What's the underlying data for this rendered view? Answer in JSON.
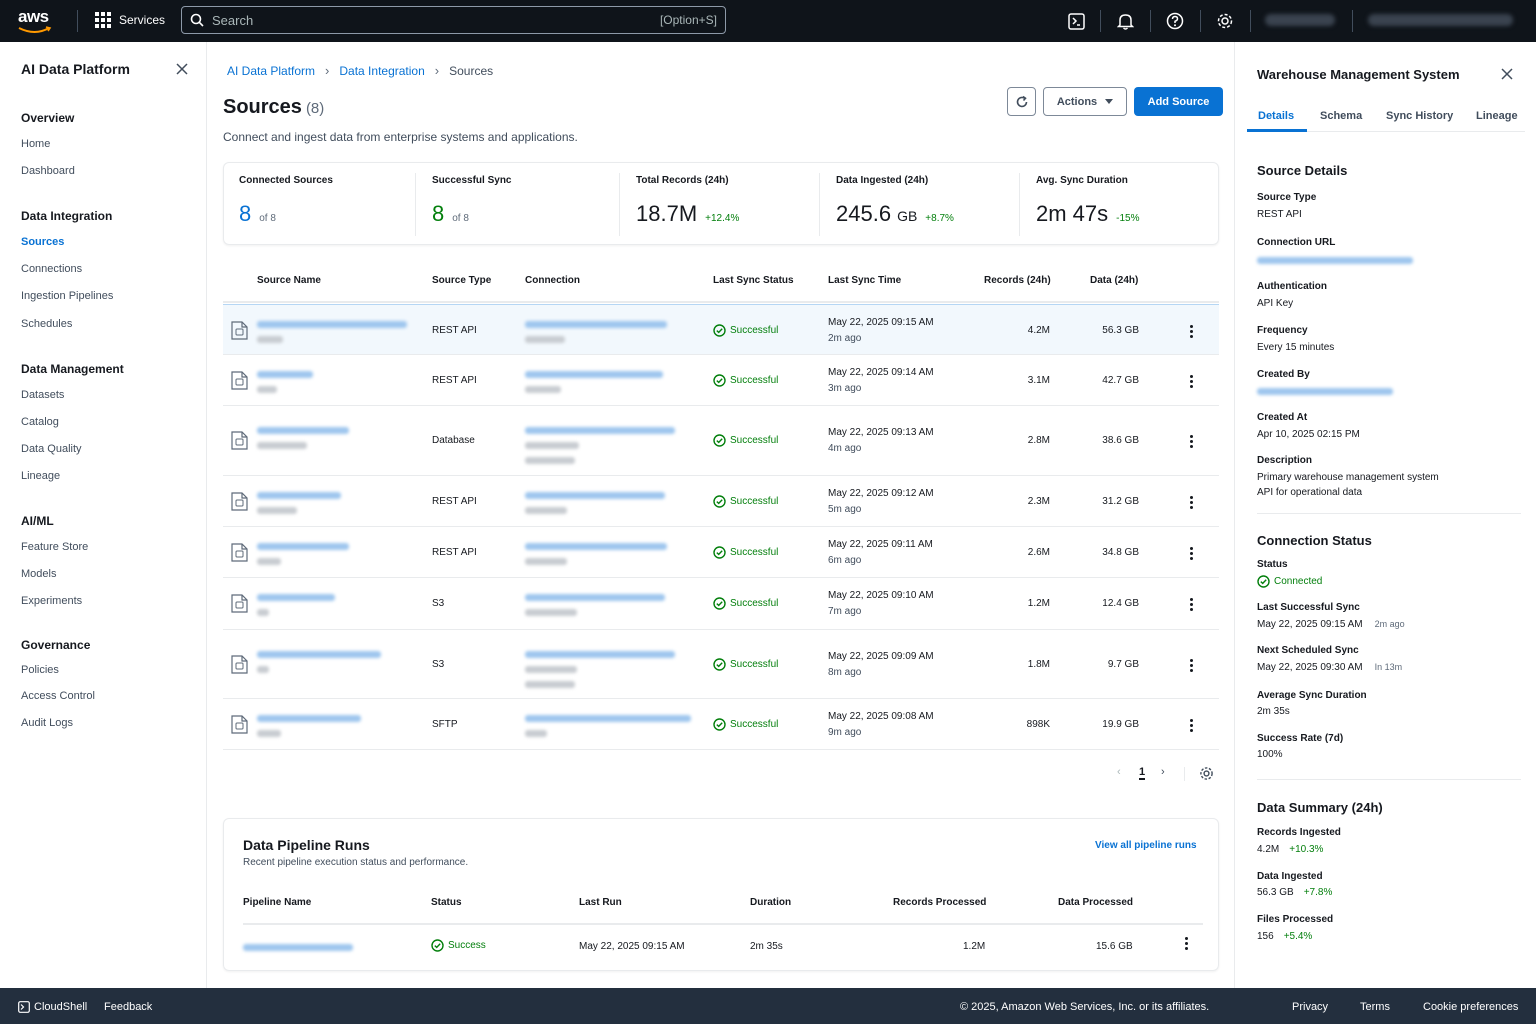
{
  "topnav": {
    "logo_text": "aws",
    "services_label": "Services",
    "search_placeholder": "Search",
    "search_shortcut": "[Option+S]"
  },
  "sidebar": {
    "title": "AI Data Platform",
    "groups": [
      {
        "label": "Overview",
        "items": [
          "Home",
          "Dashboard"
        ]
      },
      {
        "label": "Data Integration",
        "items": [
          "Sources",
          "Connections",
          "Ingestion Pipelines",
          "Schedules"
        ]
      },
      {
        "label": "Data Management",
        "items": [
          "Datasets",
          "Catalog",
          "Data Quality",
          "Lineage"
        ]
      },
      {
        "label": "AI/ML",
        "items": [
          "Feature Store",
          "Models",
          "Experiments"
        ]
      },
      {
        "label": "Governance",
        "items": [
          "Policies",
          "Access Control",
          "Audit Logs"
        ]
      }
    ],
    "active_item": "Sources"
  },
  "breadcrumb": [
    "AI Data Platform",
    "Data Integration",
    "Sources"
  ],
  "header": {
    "title": "Sources",
    "count": "(8)",
    "description": "Connect and ingest data from enterprise systems and applications.",
    "actions_label": "Actions",
    "add_label": "Add Source"
  },
  "stats": [
    {
      "label": "Connected Sources",
      "value": "8",
      "sub": "of 8",
      "style": "blue"
    },
    {
      "label": "Successful Sync",
      "value": "8",
      "sub": "of 8",
      "style": "green"
    },
    {
      "label": "Total Records (24h)",
      "value": "18.7M",
      "unit": "",
      "delta": "+12.4%"
    },
    {
      "label": "Data Ingested (24h)",
      "value": "245.6",
      "unit": "GB",
      "delta": "+8.7%"
    },
    {
      "label": "Avg. Sync Duration",
      "value": "2m 47s",
      "unit": "",
      "delta": "-15%"
    }
  ],
  "table": {
    "columns": [
      "Source Name",
      "Source Type",
      "Connection",
      "Last Sync Status",
      "Last Sync Time",
      "Records (24h)",
      "Data (24h)"
    ],
    "rows": [
      {
        "type": "REST API",
        "status": "Successful",
        "time": "May 22, 2025 09:15 AM",
        "ago": "2m ago",
        "records": "4.2M",
        "data": "56.3 GB"
      },
      {
        "type": "REST API",
        "status": "Successful",
        "time": "May 22, 2025 09:14 AM",
        "ago": "3m ago",
        "records": "3.1M",
        "data": "42.7 GB"
      },
      {
        "type": "Database",
        "status": "Successful",
        "time": "May 22, 2025 09:13 AM",
        "ago": "4m ago",
        "records": "2.8M",
        "data": "38.6 GB"
      },
      {
        "type": "REST API",
        "status": "Successful",
        "time": "May 22, 2025 09:12 AM",
        "ago": "5m ago",
        "records": "2.3M",
        "data": "31.2 GB"
      },
      {
        "type": "REST API",
        "status": "Successful",
        "time": "May 22, 2025 09:11 AM",
        "ago": "6m ago",
        "records": "2.6M",
        "data": "34.8 GB"
      },
      {
        "type": "S3",
        "status": "Successful",
        "time": "May 22, 2025 09:10 AM",
        "ago": "7m ago",
        "records": "1.2M",
        "data": "12.4 GB"
      },
      {
        "type": "S3",
        "status": "Successful",
        "time": "May 22, 2025 09:09 AM",
        "ago": "8m ago",
        "records": "1.8M",
        "data": "9.7 GB"
      },
      {
        "type": "SFTP",
        "status": "Successful",
        "time": "May 22, 2025 09:08 AM",
        "ago": "9m ago",
        "records": "898K",
        "data": "19.9 GB"
      }
    ],
    "page": "1"
  },
  "pipeline": {
    "title": "Data Pipeline Runs",
    "description": "Recent pipeline execution status and performance.",
    "view_all": "View all pipeline runs",
    "columns": [
      "Pipeline Name",
      "Status",
      "Last Run",
      "Duration",
      "Records Processed",
      "Data Processed"
    ],
    "row": {
      "status": "Success",
      "last_run": "May 22, 2025 09:15 AM",
      "duration": "2m 35s",
      "records": "1.2M",
      "data": "15.6 GB"
    }
  },
  "panel": {
    "title": "Warehouse Management System",
    "tabs": [
      "Details",
      "Schema",
      "Sync History",
      "Lineage"
    ],
    "details_heading": "Source Details",
    "source_type_label": "Source Type",
    "source_type": "REST API",
    "connection_url_label": "Connection URL",
    "auth_label": "Authentication",
    "auth": "API Key",
    "frequency_label": "Frequency",
    "frequency": "Every 15 minutes",
    "created_by_label": "Created By",
    "created_at_label": "Created At",
    "created_at": "Apr 10, 2025 02:15 PM",
    "description_label": "Description",
    "description_line1": "Primary warehouse management system",
    "description_line2": "API for operational data",
    "conn_heading": "Connection Status",
    "status_label": "Status",
    "status": "Connected",
    "last_sync_label": "Last Successful Sync",
    "last_sync": "May 22, 2025 09:15 AM",
    "last_sync_ago": "2m ago",
    "next_sync_label": "Next Scheduled Sync",
    "next_sync": "May 22, 2025 09:30 AM",
    "next_sync_in": "In 13m",
    "avg_label": "Average Sync Duration",
    "avg": "2m 35s",
    "rate_label": "Success Rate (7d)",
    "rate": "100%",
    "summary_heading": "Data Summary (24h)",
    "rec_label": "Records Ingested",
    "rec": "4.2M",
    "rec_delta": "+10.3%",
    "data_label": "Data Ingested",
    "data": "56.3 GB",
    "data_delta": "+7.8%",
    "files_label": "Files Processed",
    "files": "156",
    "files_delta": "+5.4%"
  },
  "footer": {
    "cloudshell": "CloudShell",
    "feedback": "Feedback",
    "copyright": "© 2025, Amazon Web Services, Inc. or its affiliates.",
    "privacy": "Privacy",
    "terms": "Terms",
    "cookies": "Cookie preferences"
  },
  "colors": {
    "accent": "#0972d3",
    "success": "#037f0c",
    "nav_bg": "#0f141a",
    "footer_bg": "#232f3e"
  }
}
